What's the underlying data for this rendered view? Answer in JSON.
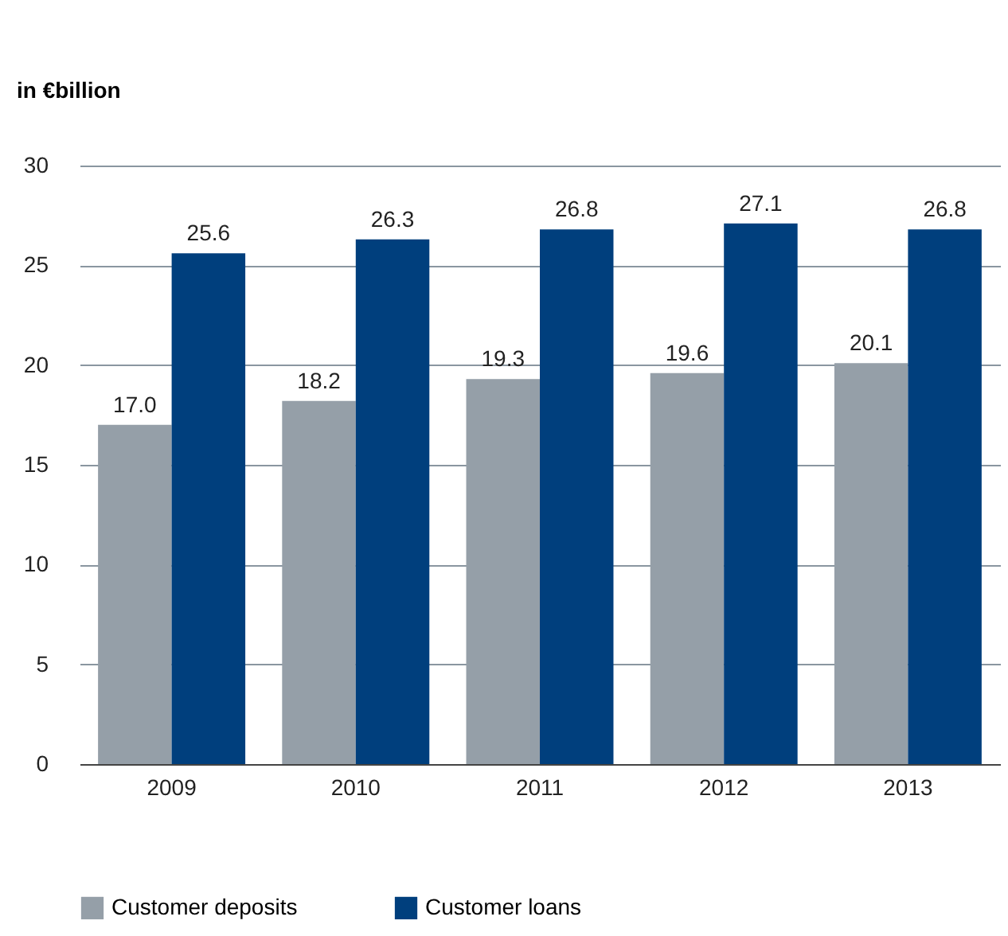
{
  "chart_data": {
    "type": "bar",
    "ylabel": "in €billion",
    "categories": [
      "2009",
      "2010",
      "2011",
      "2012",
      "2013"
    ],
    "series": [
      {
        "name": "Customer deposits",
        "color": "#959fa8",
        "values": [
          17.0,
          18.2,
          19.3,
          19.6,
          20.1
        ],
        "value_labels": [
          "17.0",
          "18.2",
          "19.3",
          "19.6",
          "20.1"
        ]
      },
      {
        "name": "Customer loans",
        "color": "#003f7d",
        "values": [
          25.6,
          26.3,
          26.8,
          27.1,
          26.8
        ],
        "value_labels": [
          "25.6",
          "26.3",
          "26.8",
          "27.1",
          "26.8"
        ]
      }
    ],
    "ylim": [
      0,
      30
    ],
    "yticks": [
      0,
      5,
      10,
      15,
      20,
      25,
      30
    ],
    "grid": "y",
    "legend": "bottom"
  }
}
